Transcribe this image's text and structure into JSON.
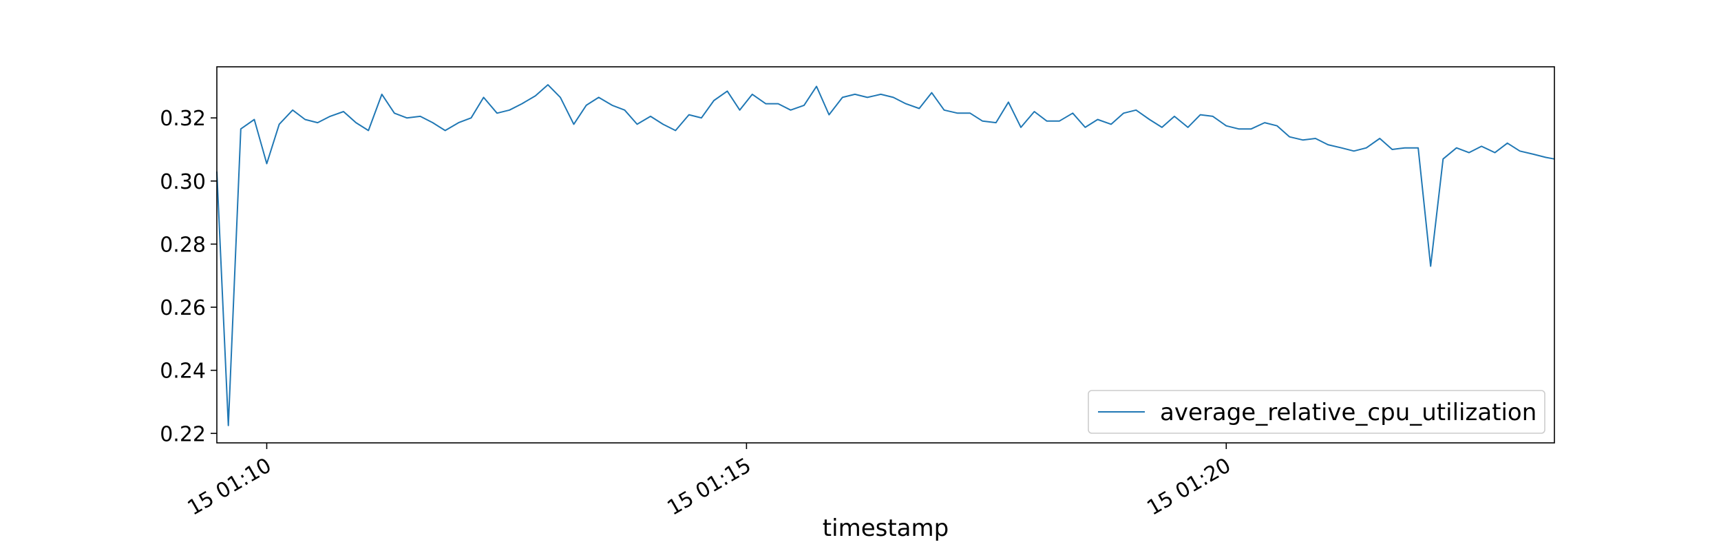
{
  "chart_data": {
    "type": "line",
    "title": "",
    "xlabel": "timestamp",
    "ylabel": "",
    "x_ticks": [
      "15 01:10",
      "15 01:15",
      "15 01:20"
    ],
    "x_tick_minutes": [
      10,
      15,
      20
    ],
    "y_ticks": [
      "0.22",
      "0.24",
      "0.26",
      "0.28",
      "0.30",
      "0.32"
    ],
    "y_tick_values": [
      0.22,
      0.24,
      0.26,
      0.28,
      0.3,
      0.32
    ],
    "xlim_minutes": [
      9.48,
      23.42
    ],
    "ylim": [
      0.217,
      0.3362
    ],
    "grid": false,
    "legend_position": "lower-right",
    "colors": {
      "series": "#1f77b4",
      "axes": "#000000",
      "legend_border": "#cccccc"
    },
    "series": [
      {
        "name": "average_relative_cpu_utilization",
        "x_minutes": [
          9.48,
          9.6,
          9.73,
          9.87,
          10.0,
          10.13,
          10.27,
          10.4,
          10.53,
          10.66,
          10.8,
          10.93,
          11.06,
          11.2,
          11.33,
          11.46,
          11.6,
          11.73,
          11.86,
          12.0,
          12.13,
          12.26,
          12.4,
          12.53,
          12.66,
          12.8,
          12.93,
          13.06,
          13.2,
          13.33,
          13.46,
          13.6,
          13.73,
          13.86,
          14.0,
          14.13,
          14.26,
          14.4,
          14.53,
          14.66,
          14.8,
          14.93,
          15.06,
          15.2,
          15.33,
          15.46,
          15.6,
          15.73,
          15.86,
          16.0,
          16.13,
          16.26,
          16.4,
          16.53,
          16.66,
          16.8,
          16.93,
          17.06,
          17.2,
          17.33,
          17.46,
          17.6,
          17.73,
          17.86,
          18.0,
          18.13,
          18.26,
          18.4,
          18.53,
          18.66,
          18.8,
          18.93,
          19.06,
          19.2,
          19.33,
          19.46,
          19.6,
          19.73,
          19.86,
          20.0,
          20.13,
          20.26,
          20.4,
          20.53,
          20.66,
          20.8,
          20.93,
          21.06,
          21.2,
          21.33,
          21.46,
          21.6,
          21.73,
          21.86,
          22.0,
          22.13,
          22.26,
          22.4,
          22.53,
          22.66,
          22.8,
          22.93,
          23.06,
          23.2,
          23.33,
          23.42
        ],
        "values": [
          0.303,
          0.2225,
          0.3165,
          0.3195,
          0.3055,
          0.318,
          0.3225,
          0.3195,
          0.3185,
          0.3205,
          0.322,
          0.3185,
          0.316,
          0.3275,
          0.3215,
          0.32,
          0.3205,
          0.3185,
          0.316,
          0.3185,
          0.32,
          0.3265,
          0.3215,
          0.3225,
          0.3245,
          0.327,
          0.3305,
          0.3265,
          0.318,
          0.324,
          0.3265,
          0.324,
          0.3225,
          0.318,
          0.3205,
          0.318,
          0.316,
          0.321,
          0.32,
          0.3255,
          0.3285,
          0.3225,
          0.3275,
          0.3245,
          0.3245,
          0.3225,
          0.324,
          0.33,
          0.321,
          0.3265,
          0.3275,
          0.3265,
          0.3275,
          0.3265,
          0.3245,
          0.323,
          0.328,
          0.3225,
          0.3215,
          0.3215,
          0.319,
          0.3185,
          0.325,
          0.317,
          0.322,
          0.319,
          0.319,
          0.3215,
          0.317,
          0.3195,
          0.318,
          0.3215,
          0.3225,
          0.3195,
          0.317,
          0.3205,
          0.317,
          0.321,
          0.3205,
          0.3175,
          0.3165,
          0.3165,
          0.3185,
          0.3175,
          0.314,
          0.313,
          0.3135,
          0.3115,
          0.3105,
          0.3095,
          0.3105,
          0.3135,
          0.31,
          0.3105,
          0.3105,
          0.273,
          0.307,
          0.3105,
          0.309,
          0.311,
          0.309,
          0.312,
          0.3095,
          0.3085,
          0.3075,
          0.307
        ]
      }
    ]
  }
}
